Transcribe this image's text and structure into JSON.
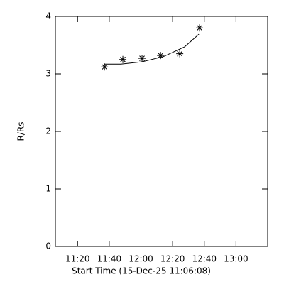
{
  "chart_data": {
    "type": "scatter",
    "xlabel": "Start Time (15-Dec-25 11:06:08)",
    "ylabel": "R/Rs",
    "xlim": [
      666,
      800
    ],
    "xticks": [
      {
        "value": 680,
        "label": "11:20"
      },
      {
        "value": 700,
        "label": "11:40"
      },
      {
        "value": 720,
        "label": "12:00"
      },
      {
        "value": 740,
        "label": "12:20"
      },
      {
        "value": 760,
        "label": "12:40"
      },
      {
        "value": 780,
        "label": "13:00"
      }
    ],
    "ylim": [
      0,
      4
    ],
    "yticks": [
      0,
      1,
      2,
      3,
      4
    ],
    "series": [
      {
        "type": "scatter",
        "color": "#000000",
        "x": [
          697,
          708.6,
          720.7,
          732.4,
          744.5,
          757
        ],
        "values": [
          3.12,
          3.25,
          3.27,
          3.32,
          3.35,
          3.8
        ]
      },
      {
        "type": "line",
        "color": "#000000",
        "x": [
          697,
          707.3,
          720.7,
          734.2,
          747.6,
          756.6
        ],
        "values": [
          3.17,
          3.17,
          3.21,
          3.3,
          3.47,
          3.69
        ]
      }
    ]
  }
}
